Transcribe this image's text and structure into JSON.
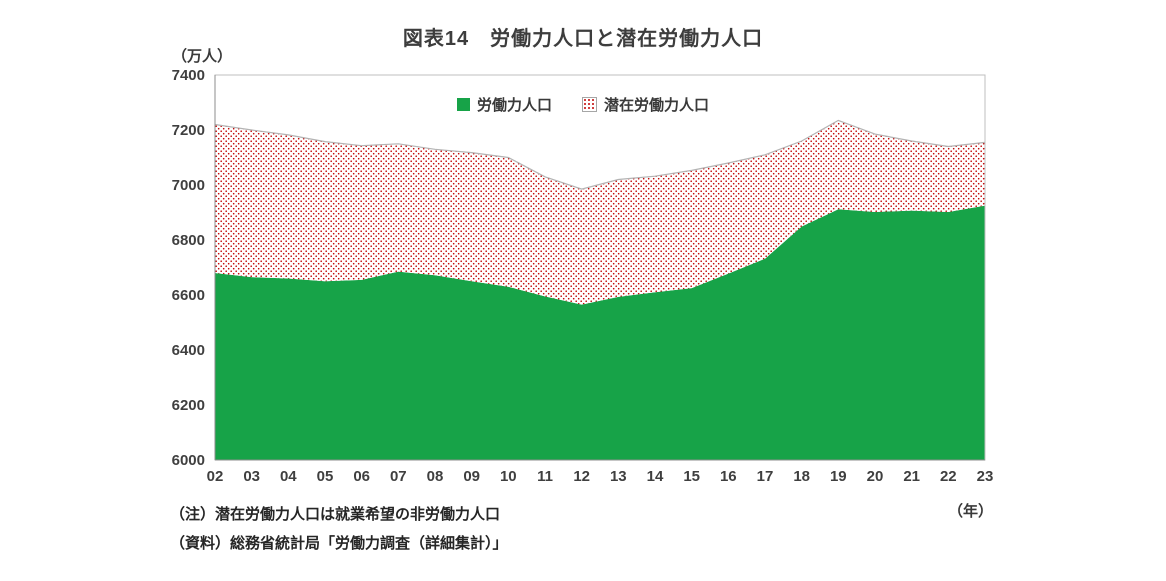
{
  "chart_data": {
    "type": "area",
    "stacked": true,
    "title": "図表14　労働力人口と潜在労働力人口",
    "y_axis_unit": "（万人）",
    "x_axis_unit": "（年）",
    "categories": [
      "02",
      "03",
      "04",
      "05",
      "06",
      "07",
      "08",
      "09",
      "10",
      "11",
      "12",
      "13",
      "14",
      "15",
      "16",
      "17",
      "18",
      "19",
      "20",
      "21",
      "22",
      "23"
    ],
    "series": [
      {
        "name": "労働力人口",
        "style": "solid",
        "color": "#17a348",
        "values": [
          6680,
          6665,
          6660,
          6650,
          6655,
          6685,
          6672,
          6650,
          6630,
          6595,
          6565,
          6593,
          6610,
          6625,
          6678,
          6732,
          6849,
          6912,
          6902,
          6907,
          6902,
          6925
        ]
      },
      {
        "name": "潜在労働力人口",
        "style": "red-dots",
        "dot_color": "#c00000",
        "values": [
          540,
          535,
          522,
          508,
          488,
          465,
          458,
          468,
          470,
          435,
          420,
          427,
          422,
          428,
          402,
          378,
          311,
          323,
          283,
          253,
          238,
          230
        ]
      }
    ],
    "ylim": [
      6000,
      7400
    ],
    "yticks": [
      6000,
      6200,
      6400,
      6600,
      6800,
      7000,
      7200,
      7400
    ],
    "grid": false,
    "legend_position": "top-center-inside"
  },
  "notes": [
    "（注）潜在労働力人口は就業希望の非労働力人口",
    "（資料）総務省統計局「労働力調査（詳細集計）」"
  ]
}
